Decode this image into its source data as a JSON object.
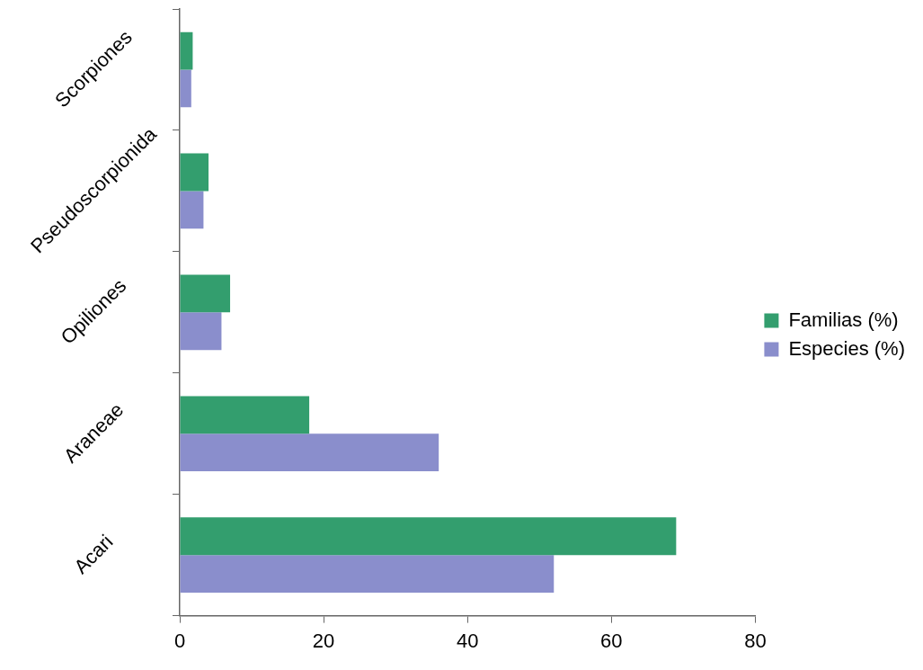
{
  "chart_data": {
    "type": "bar",
    "orientation": "horizontal",
    "categories": [
      "Scorpiones",
      "Pseudoscorpionida",
      "Opiliones",
      "Araneae",
      "Acari"
    ],
    "series": [
      {
        "name": "Familias (%)",
        "color": "#339e6e",
        "values": [
          1.8,
          4,
          7,
          18,
          69
        ]
      },
      {
        "name": "Especies (%)",
        "color": "#8a8ecc",
        "values": [
          1.6,
          3.3,
          5.8,
          36,
          52
        ]
      }
    ],
    "xlim": [
      0,
      80
    ],
    "xticks": [
      0,
      20,
      40,
      60,
      80
    ],
    "legend": "right",
    "grid": false
  }
}
